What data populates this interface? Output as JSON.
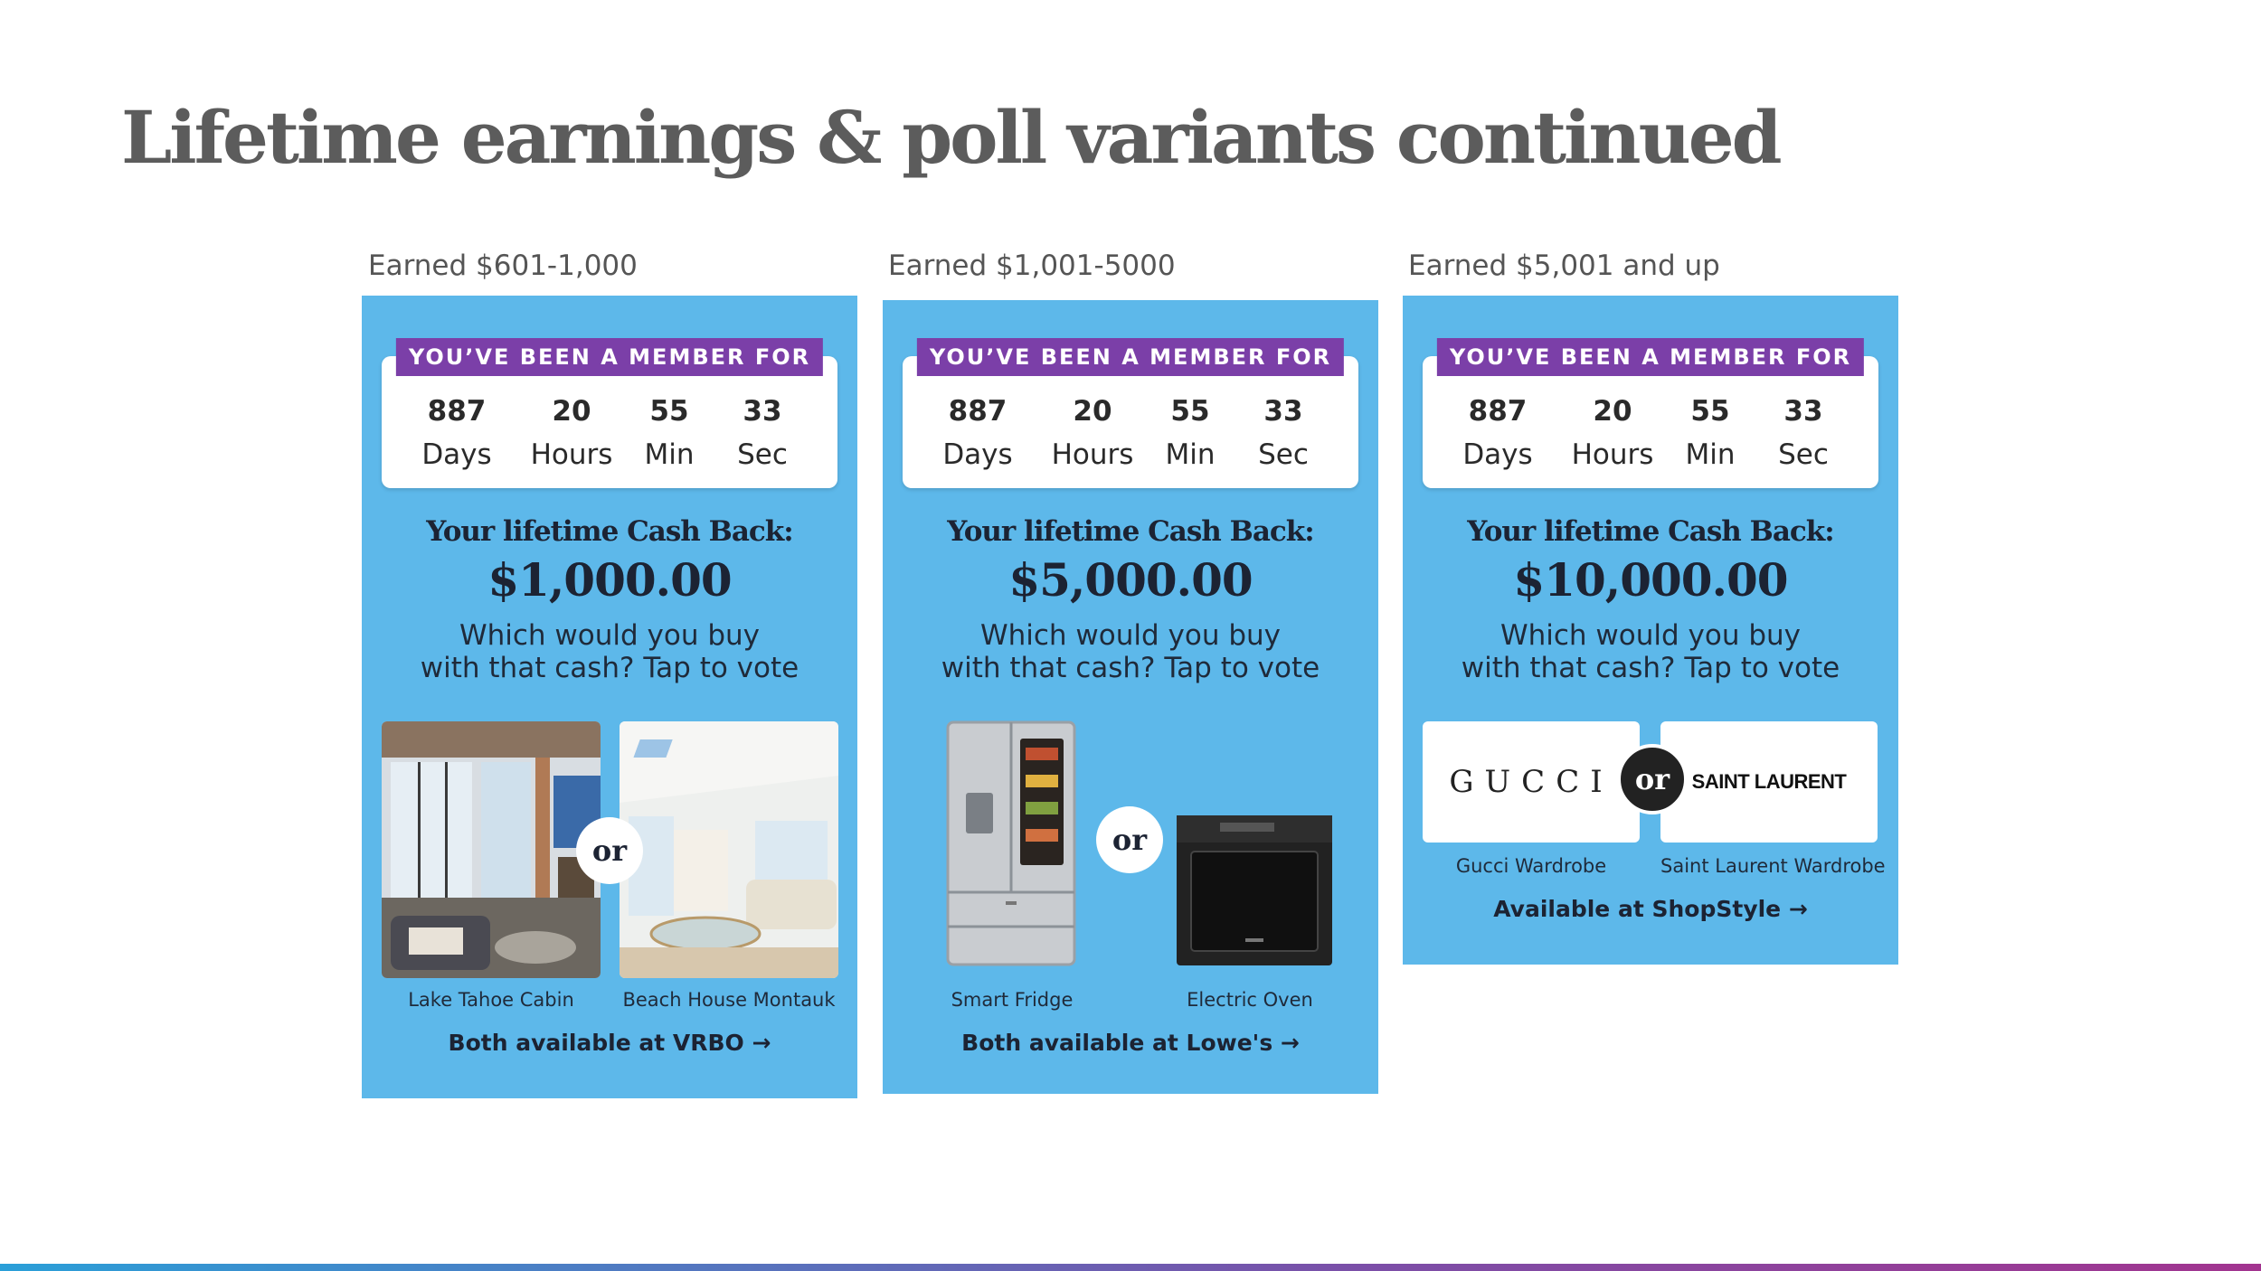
{
  "slide": {
    "title": "Lifetime earnings & poll variants continued"
  },
  "member_banner": "YOU’VE BEEN A MEMBER FOR",
  "timer": {
    "days": "887",
    "days_label": "Days",
    "hours": "20",
    "hours_label": "Hours",
    "min": "55",
    "min_label": "Min",
    "sec": "33",
    "sec_label": "Sec"
  },
  "lifetime_label": "Your lifetime Cash Back:",
  "question_line1": "Which would you buy",
  "question_line2": "with that cash? Tap to vote",
  "or_label": "or",
  "variants": [
    {
      "tier": "Earned $601-1,000",
      "amount": "$1,000.00",
      "option_a": "Lake Tahoe Cabin",
      "option_b": "Beach House Montauk",
      "cta": "Both available at VRBO →"
    },
    {
      "tier": "Earned $1,001-5000",
      "amount": "$5,000.00",
      "option_a": "Smart Fridge",
      "option_b": "Electric Oven",
      "cta": "Both available at Lowe's →"
    },
    {
      "tier": "Earned $5,001 and up",
      "amount": "$10,000.00",
      "option_a": "Gucci Wardrobe",
      "option_b": "Saint Laurent Wardrobe",
      "logo_a": "GUCCI",
      "logo_b": "SAINT LAURENT",
      "cta": "Available at ShopStyle →"
    }
  ],
  "colors": {
    "panel_bg": "#5db8ea",
    "banner_purple": "#7b3fa8",
    "title_gray": "#5c5c5c"
  }
}
